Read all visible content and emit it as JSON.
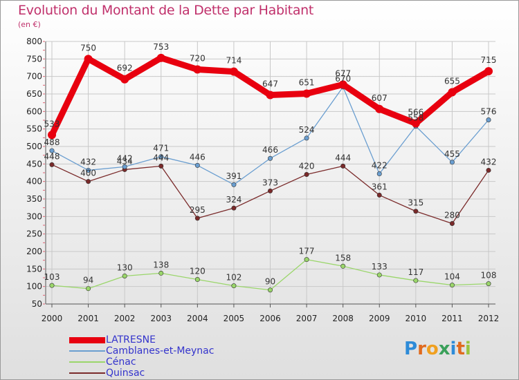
{
  "title": "Evolution du Montant de la Dette par Habitant",
  "unit": "(en €)",
  "colors": {
    "title": "#c0306b",
    "axis_text": "#222222",
    "legend_text": "#3333cc",
    "grid": "#c8c8c8"
  },
  "logo": {
    "letters": [
      "P",
      "r",
      "o",
      "x",
      "i",
      "t",
      "i"
    ],
    "colors": [
      "#2d8bd8",
      "#e06a1e",
      "#f0a020",
      "#3aa05a",
      "#2d8bd8",
      "#e06a1e",
      "#9ac440"
    ]
  },
  "chart_data": {
    "type": "line",
    "title": "Evolution du Montant de la Dette par Habitant",
    "ylabel": "(en €)",
    "xlabel": "",
    "ylim": [
      50,
      800
    ],
    "yticks": [
      50,
      100,
      150,
      200,
      250,
      300,
      350,
      400,
      450,
      500,
      550,
      600,
      650,
      700,
      750,
      800
    ],
    "grid": true,
    "legend_position": "bottom-left",
    "x": [
      "2000",
      "2001",
      "2002",
      "2003",
      "2004",
      "2005",
      "2006",
      "2007",
      "2008",
      "2009",
      "2010",
      "2011",
      "2012"
    ],
    "series": [
      {
        "name": "LATRESNE",
        "color": "#e8000f",
        "width": 9,
        "values": [
          533,
          750,
          692,
          753,
          720,
          714,
          647,
          651,
          677,
          607,
          566,
          655,
          715
        ],
        "labels": [
          "533",
          "750",
          "692",
          "753",
          "720",
          "714",
          "647",
          "651",
          "677",
          "607",
          "566",
          "655",
          "715"
        ]
      },
      {
        "name": "Camblanes-et-Meynac",
        "color": "#6a9ed0",
        "width": 1.3,
        "values": [
          488,
          432,
          442,
          471,
          446,
          391,
          466,
          524,
          670,
          422,
          558,
          455,
          576
        ],
        "labels": [
          "488",
          "432",
          "442",
          "471",
          "446",
          "391",
          "466",
          "524",
          "670",
          "422",
          "558",
          "455",
          "576"
        ]
      },
      {
        "name": "Cénac",
        "color": "#9ad66a",
        "width": 1.3,
        "values": [
          103,
          94,
          130,
          138,
          120,
          102,
          90,
          177,
          158,
          133,
          117,
          104,
          108
        ],
        "labels": [
          "103",
          "94",
          "130",
          "138",
          "120",
          "102",
          "90",
          "177",
          "158",
          "133",
          "117",
          "104",
          "108"
        ]
      },
      {
        "name": "Quinsac",
        "color": "#7a2a2a",
        "width": 1.3,
        "values": [
          448,
          400,
          434,
          444,
          295,
          324,
          373,
          420,
          444,
          361,
          315,
          280,
          432
        ],
        "labels": [
          "448",
          "400",
          "434",
          "444",
          "295",
          "324",
          "373",
          "420",
          "444",
          "361",
          "315",
          "280",
          "432"
        ]
      }
    ],
    "draw_order": [
      3,
      1,
      2,
      0
    ]
  }
}
